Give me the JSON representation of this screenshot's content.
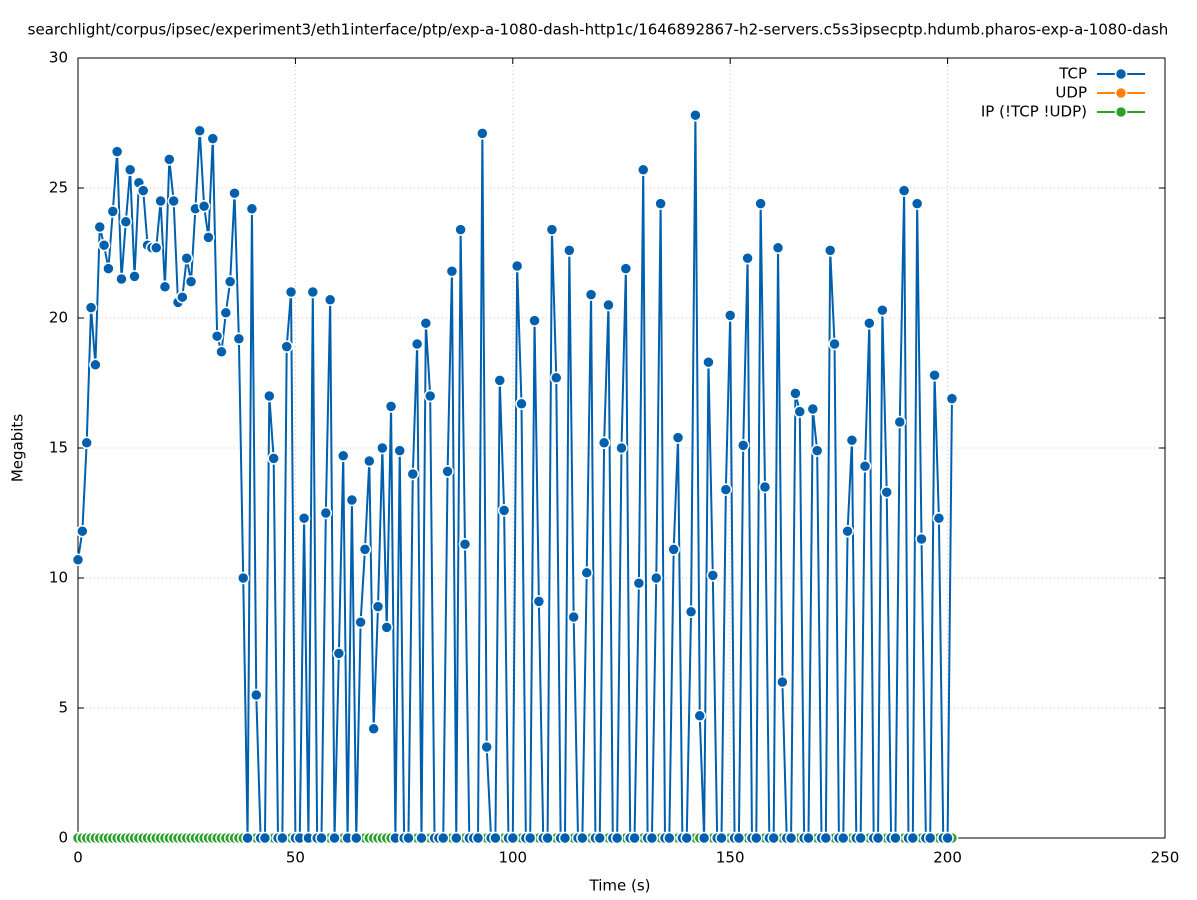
{
  "chart_data": {
    "type": "line",
    "title": "searchlight/corpus/ipsec/experiment3/eth1interface/ptp/exp-a-1080-dash-http1c/1646892867-h2-servers.c5s3ipsecptp.hdumb.pharos-exp-a-1080-dash",
    "x_label": "Time (s)",
    "y_label": "Megabits",
    "x": [
      0,
      1,
      2,
      3,
      4,
      5,
      6,
      7,
      8,
      9,
      10,
      11,
      12,
      13,
      14,
      15,
      16,
      17,
      18,
      19,
      20,
      21,
      22,
      23,
      24,
      25,
      26,
      27,
      28,
      29,
      30,
      31,
      32,
      33,
      34,
      35,
      36,
      37,
      38,
      39,
      40,
      41,
      42,
      43,
      44,
      45,
      46,
      47,
      48,
      49,
      50,
      51,
      52,
      53,
      54,
      55,
      56,
      57,
      58,
      59,
      60,
      61,
      62,
      63,
      64,
      65,
      66,
      67,
      68,
      69,
      70,
      71,
      72,
      73,
      74,
      75,
      76,
      77,
      78,
      79,
      80,
      81,
      82,
      83,
      84,
      85,
      86,
      87,
      88,
      89,
      90,
      91,
      92,
      93,
      94,
      95,
      96,
      97,
      98,
      99,
      100,
      101,
      102,
      103,
      104,
      105,
      106,
      107,
      108,
      109,
      110,
      111,
      112,
      113,
      114,
      115,
      116,
      117,
      118,
      119,
      120,
      121,
      122,
      123,
      124,
      125,
      126,
      127,
      128,
      129,
      130,
      131,
      132,
      133,
      134,
      135,
      136,
      137,
      138,
      139,
      140,
      141,
      142,
      143,
      144,
      145,
      146,
      147,
      148,
      149,
      150,
      151,
      152,
      153,
      154,
      155,
      156,
      157,
      158,
      159,
      160,
      161,
      162,
      163,
      164,
      165,
      166,
      167,
      168,
      169,
      170,
      171,
      172,
      173,
      174,
      175,
      176,
      177,
      178,
      179,
      180,
      181,
      182,
      183,
      184,
      185,
      186,
      187,
      188,
      189,
      190,
      191,
      192,
      193,
      194,
      195,
      196,
      197,
      198,
      199,
      200,
      201
    ],
    "series": [
      {
        "name": "TCP",
        "color": "#0060ad",
        "values": [
          10.7,
          11.8,
          15.2,
          20.4,
          18.2,
          23.5,
          22.8,
          21.9,
          24.1,
          26.4,
          21.5,
          23.7,
          25.7,
          21.6,
          25.2,
          24.9,
          22.8,
          22.7,
          22.7,
          24.5,
          21.2,
          26.1,
          24.5,
          20.6,
          20.8,
          22.3,
          21.4,
          24.2,
          27.2,
          24.3,
          23.1,
          26.9,
          19.3,
          18.7,
          20.2,
          21.4,
          24.8,
          19.2,
          10.0,
          0,
          24.2,
          5.5,
          0,
          0,
          17.0,
          14.6,
          0,
          0,
          18.9,
          21.0,
          0,
          0,
          12.3,
          0,
          21.0,
          0,
          0,
          12.5,
          20.7,
          0,
          7.1,
          14.7,
          0,
          13.0,
          0,
          8.3,
          11.1,
          14.5,
          4.2,
          8.9,
          15.0,
          8.1,
          16.6,
          0,
          14.9,
          0,
          0,
          14.0,
          19.0,
          0,
          19.8,
          17.0,
          0,
          0,
          0,
          14.1,
          21.8,
          0,
          23.4,
          11.3,
          0,
          0,
          0,
          27.1,
          3.5,
          0,
          0,
          17.6,
          12.6,
          0,
          0,
          22.0,
          16.7,
          0,
          0,
          19.9,
          9.1,
          0,
          0,
          23.4,
          17.7,
          0,
          0,
          22.6,
          8.5,
          0,
          0,
          10.2,
          20.9,
          0,
          0,
          15.2,
          20.5,
          0,
          0,
          15.0,
          21.9,
          0,
          0,
          9.8,
          25.7,
          0,
          0,
          10.0,
          24.4,
          0,
          0,
          11.1,
          15.4,
          0,
          0,
          8.7,
          27.8,
          4.7,
          0,
          18.3,
          10.1,
          0,
          0,
          13.4,
          20.1,
          0,
          0,
          15.1,
          22.3,
          0,
          0,
          24.4,
          13.5,
          0,
          0,
          22.7,
          6.0,
          0,
          0,
          17.1,
          16.4,
          0,
          0,
          16.5,
          14.9,
          0,
          0,
          22.6,
          19.0,
          0,
          0,
          11.8,
          15.3,
          0,
          0,
          14.3,
          19.8,
          0,
          0,
          20.3,
          13.3,
          0,
          0,
          16.0,
          24.9,
          0,
          0,
          24.4,
          11.5,
          0,
          0,
          17.8,
          12.3,
          0,
          0,
          16.9
        ]
      },
      {
        "name": "UDP",
        "color": "#ff7f0e",
        "values": [
          null,
          null,
          null,
          null,
          null,
          null,
          null,
          null,
          null,
          null,
          null,
          null,
          null,
          null,
          null,
          null,
          null,
          null,
          null,
          null,
          null,
          null,
          null,
          null,
          null,
          null,
          null,
          null,
          null,
          null,
          null,
          null,
          null,
          null,
          null,
          null,
          null,
          null,
          null,
          null,
          null,
          null,
          null,
          null,
          null,
          null,
          null,
          null,
          null,
          null,
          null,
          null,
          null,
          null,
          null,
          null,
          null,
          null,
          null,
          null,
          null,
          null,
          null,
          null,
          null,
          null,
          null,
          null,
          null,
          null,
          null,
          null,
          null,
          null,
          null,
          null,
          null,
          null,
          null,
          null,
          null,
          null,
          null,
          null,
          null,
          null,
          null,
          null,
          null,
          null,
          null,
          null,
          null,
          null,
          null,
          null,
          null,
          null,
          null,
          null,
          null,
          null,
          null,
          null,
          null,
          null,
          null,
          null,
          null,
          null,
          null,
          null,
          null,
          null,
          null,
          null,
          null,
          null,
          null,
          null,
          null,
          null,
          null,
          null,
          null,
          null,
          null,
          null,
          null,
          null,
          null,
          null,
          null,
          null,
          null,
          null,
          null,
          null,
          null,
          null,
          null,
          null,
          null,
          null,
          null,
          null,
          null,
          null,
          null,
          null,
          null,
          null,
          null,
          null,
          null,
          null,
          null,
          null,
          null,
          null,
          null,
          null,
          null,
          null,
          null,
          null,
          null,
          null,
          null,
          null,
          null,
          null,
          null,
          null,
          null,
          null,
          null,
          null,
          null,
          null,
          null,
          null,
          null,
          null,
          null,
          null,
          null,
          null,
          null,
          null,
          null,
          null,
          null,
          null,
          null,
          null,
          null,
          null,
          null,
          null,
          null,
          null
        ]
      },
      {
        "name": "IP (!TCP  !UDP)",
        "color": "#2ca02c",
        "values": [
          0,
          0,
          0,
          0,
          0,
          0,
          0,
          0,
          0,
          0,
          0,
          0,
          0,
          0,
          0,
          0,
          0,
          0,
          0,
          0,
          0,
          0,
          0,
          0,
          0,
          0,
          0,
          0,
          0,
          0,
          0,
          0,
          0,
          0,
          0,
          0,
          0,
          0,
          0,
          0,
          0,
          0,
          0,
          0,
          0,
          0,
          0,
          0,
          0,
          0,
          0,
          0,
          0,
          0,
          0,
          0,
          0,
          0,
          0,
          0,
          0,
          0,
          0,
          0,
          0,
          0,
          0,
          0,
          0,
          0,
          0,
          0,
          0,
          0,
          0,
          0,
          0,
          0,
          0,
          0,
          0,
          0,
          0,
          0,
          0,
          0,
          0,
          0,
          0,
          0,
          0,
          0,
          0,
          0,
          0,
          0,
          0,
          0,
          0,
          0,
          0,
          0,
          0,
          0,
          0,
          0,
          0,
          0,
          0,
          0,
          0,
          0,
          0,
          0,
          0,
          0,
          0,
          0,
          0,
          0,
          0,
          0,
          0,
          0,
          0,
          0,
          0,
          0,
          0,
          0,
          0,
          0,
          0,
          0,
          0,
          0,
          0,
          0,
          0,
          0,
          0,
          0,
          0,
          0,
          0,
          0,
          0,
          0,
          0,
          0,
          0,
          0,
          0,
          0,
          0,
          0,
          0,
          0,
          0,
          0,
          0,
          0,
          0,
          0,
          0,
          0,
          0,
          0,
          0,
          0,
          0,
          0,
          0,
          0,
          0,
          0,
          0,
          0,
          0,
          0,
          0,
          0,
          0,
          0,
          0,
          0,
          0,
          0,
          0,
          0,
          0,
          0,
          0,
          0,
          0,
          0,
          0,
          0,
          0,
          0,
          0,
          0
        ]
      }
    ],
    "xlim": [
      0,
      250
    ],
    "xticks": [
      0,
      50,
      100,
      150,
      200,
      250
    ],
    "ylim": [
      0,
      30
    ],
    "yticks": [
      0,
      5,
      10,
      15,
      20,
      25,
      30
    ],
    "grid": true,
    "legend": "top-right"
  }
}
